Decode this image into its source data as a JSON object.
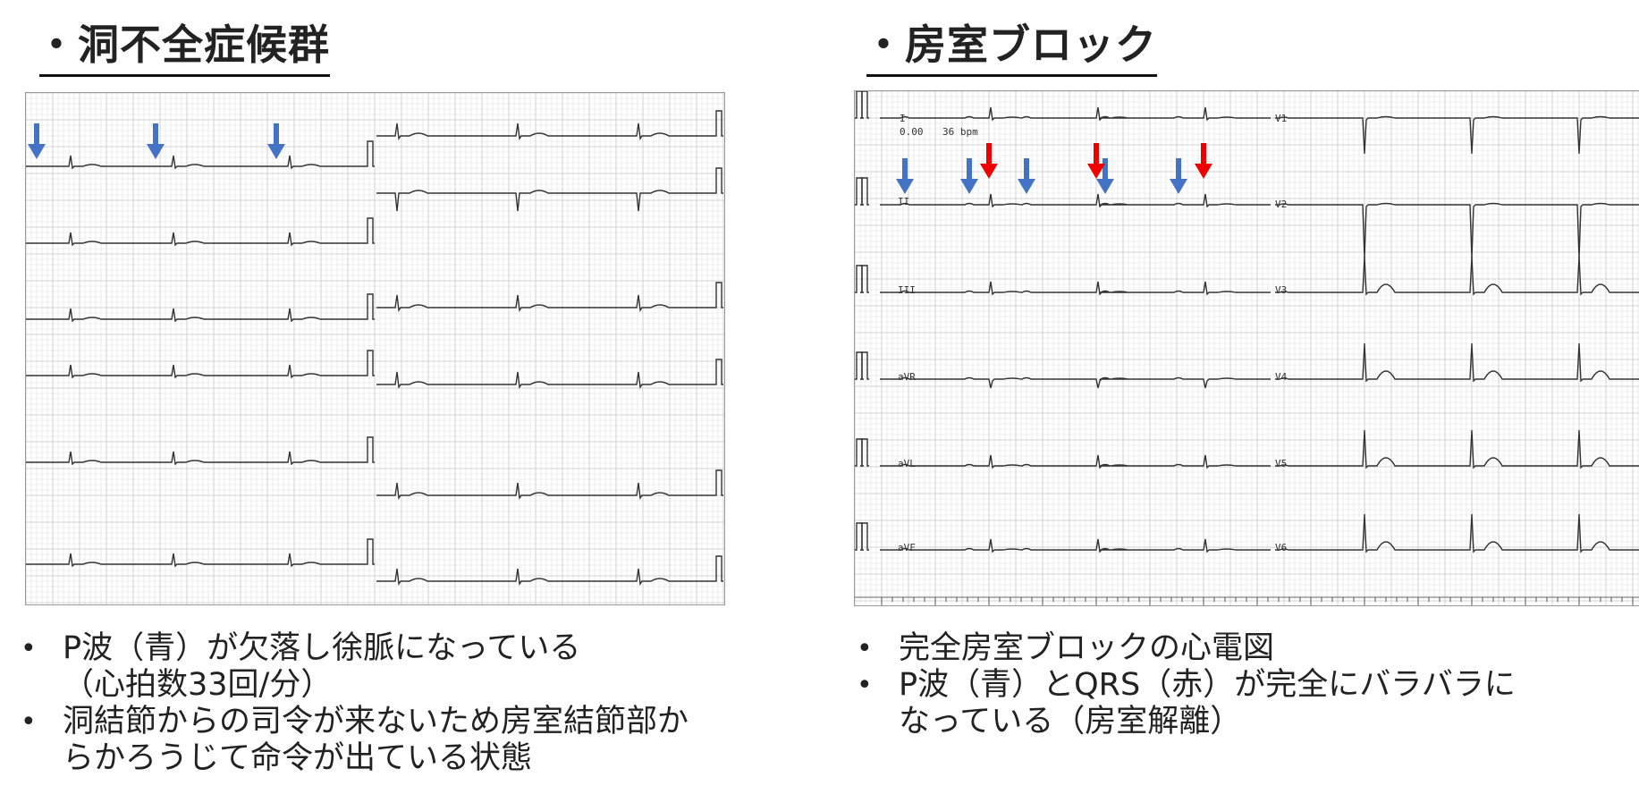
{
  "left": {
    "title": "・洞不全症候群",
    "bullets": [
      {
        "line1": "P波（青）が欠落し徐脈になっている",
        "line2": "（心拍数33回/分）"
      },
      {
        "line1": "洞結節からの司令が来ないため房室結節部か",
        "line2": "らかろうじて命令が出ている状態"
      }
    ]
  },
  "right": {
    "title": "・房室ブロック",
    "ecg_header": {
      "speed": "0.00",
      "rate": "36 bpm"
    },
    "leads_left": [
      "I",
      "II",
      "III",
      "aVR",
      "aVL",
      "aVF"
    ],
    "leads_right": [
      "V1",
      "V2",
      "V3",
      "V4",
      "V5",
      "V6"
    ],
    "bullets": [
      {
        "line1": "完全房室ブロックの心電図",
        "line2": ""
      },
      {
        "line1": "P波（青）とQRS（赤）が完全にバラバラに",
        "line2": "なっている（房室解離）"
      }
    ]
  },
  "colors": {
    "p_wave_arrow": "#4472c4",
    "qrs_arrow": "#ee0000",
    "trace": "#333333",
    "grid_minor": "#e2e2e2",
    "grid_major": "#c8c8c8"
  }
}
